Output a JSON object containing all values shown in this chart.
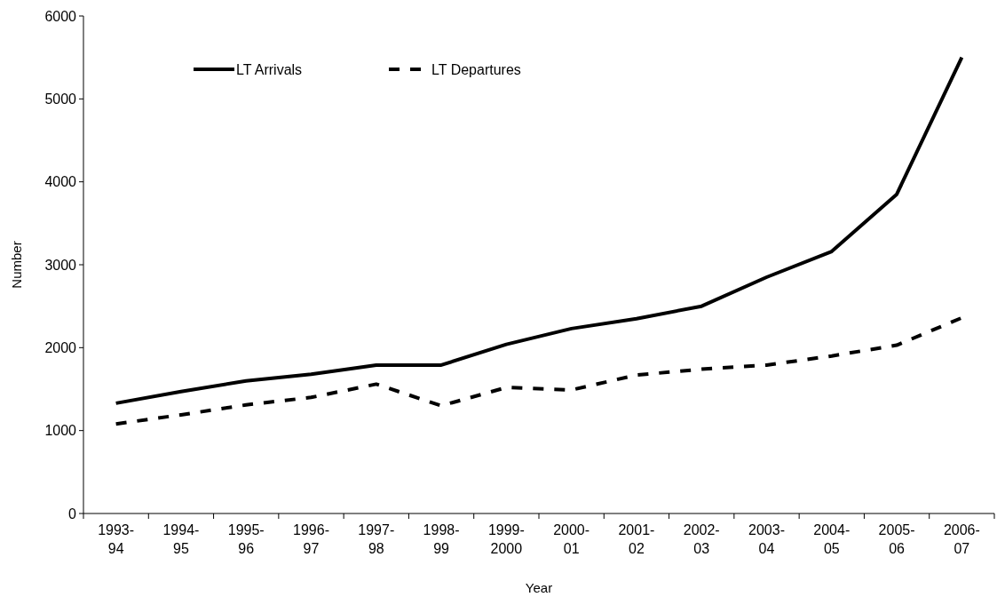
{
  "chart_data": {
    "type": "line",
    "xlabel": "Year",
    "ylabel": "Number",
    "categories": [
      "1993-\n94",
      "1994-\n95",
      "1995-\n96",
      "1996-\n97",
      "1997-\n98",
      "1998-\n99",
      "1999-\n2000",
      "2000-\n01",
      "2001-\n02",
      "2002-\n03",
      "2003-\n04",
      "2004-\n05",
      "2005-\n06",
      "2006-\n07"
    ],
    "series": [
      {
        "name": "LT Arrivals",
        "color": "#000000",
        "line_style": "solid",
        "values": [
          1330,
          1470,
          1600,
          1680,
          1790,
          1790,
          2040,
          2230,
          2350,
          2500,
          2850,
          3160,
          3850,
          5500
        ]
      },
      {
        "name": "LT Departures",
        "color": "#000000",
        "line_style": "dashed",
        "values": [
          1080,
          1190,
          1310,
          1400,
          1560,
          1300,
          1520,
          1490,
          1670,
          1740,
          1790,
          1900,
          2030,
          2360
        ]
      }
    ],
    "ylim": [
      0,
      6000
    ],
    "yticks": [
      0,
      1000,
      2000,
      3000,
      4000,
      5000,
      6000
    ],
    "grid": false,
    "legend": "top left",
    "marker": "none"
  }
}
